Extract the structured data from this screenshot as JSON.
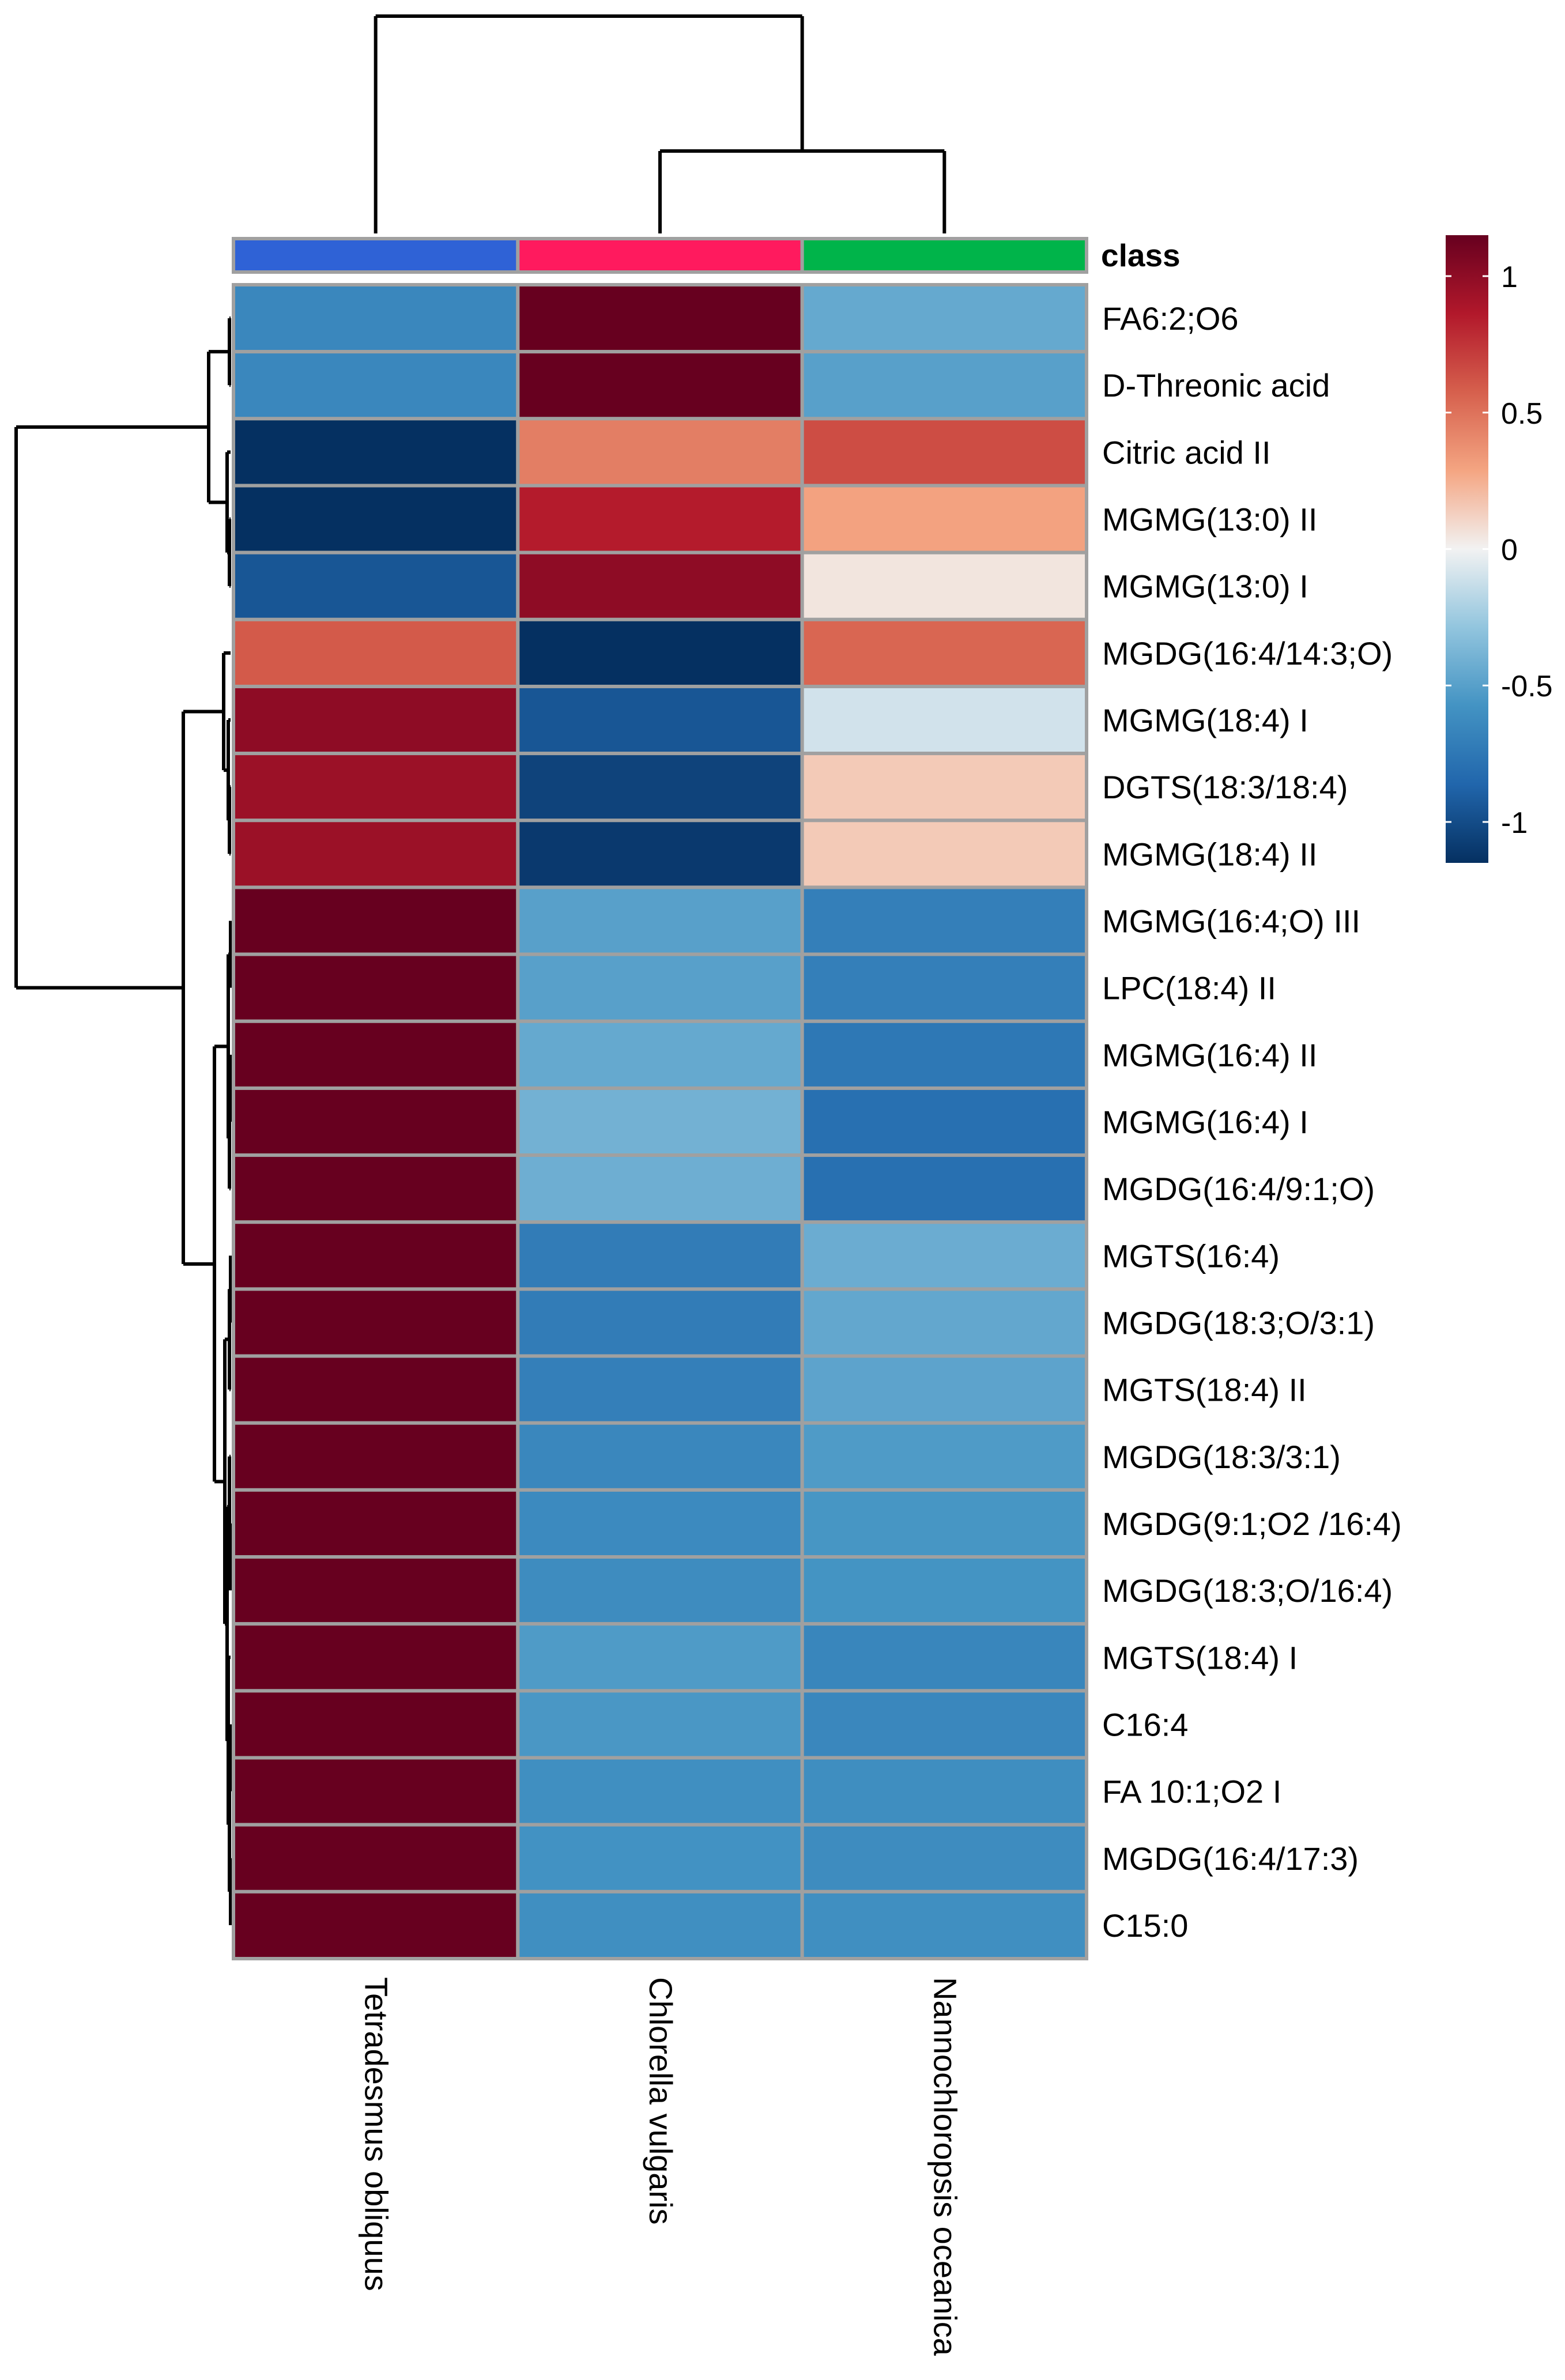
{
  "chart_data": {
    "type": "heatmap",
    "annotation_label": "class",
    "columns": [
      "Tetradesmus obliquus",
      "Chlorella vulgaris",
      "Nannochloropsis oceanica"
    ],
    "column_class_colors": [
      "#2F62D6",
      "#FF1A5E",
      "#00B44A"
    ],
    "rows": [
      "FA6:2;O6",
      "D-Threonic acid",
      "Citric acid II",
      "MGMG(13:0) II",
      "MGMG(13:0) I",
      "MGDG(16:4/14:3;O)",
      "MGMG(18:4) I",
      "DGTS(18:3/18:4)",
      "MGMG(18:4) II",
      "MGMG(16:4;O) III",
      "LPC(18:4) II",
      "MGMG(16:4) II",
      "MGMG(16:4) I",
      "MGDG(16:4/9:1;O)",
      "MGTS(16:4)",
      "MGDG(18:3;O/3:1)",
      "MGTS(18:4) II",
      "MGDG(18:3/3:1)",
      "MGDG(9:1;O2 /16:4)",
      "MGDG(18:3;O/16:4)",
      "MGTS(18:4) I",
      "C16:4",
      "FA 10:1;O2 I",
      "MGDG(16:4/17:3)",
      "C15:0"
    ],
    "values": [
      [
        -0.65,
        1.15,
        -0.45
      ],
      [
        -0.65,
        1.15,
        -0.5
      ],
      [
        -1.15,
        0.45,
        0.65
      ],
      [
        -1.15,
        0.85,
        0.3
      ],
      [
        -0.95,
        1.0,
        0.05
      ],
      [
        0.6,
        -1.15,
        0.55
      ],
      [
        1.0,
        -0.95,
        -0.1
      ],
      [
        0.95,
        -1.05,
        0.15
      ],
      [
        0.95,
        -1.1,
        0.15
      ],
      [
        1.15,
        -0.5,
        -0.7
      ],
      [
        1.15,
        -0.5,
        -0.7
      ],
      [
        1.15,
        -0.45,
        -0.75
      ],
      [
        1.15,
        -0.4,
        -0.8
      ],
      [
        1.15,
        -0.42,
        -0.8
      ],
      [
        1.15,
        -0.72,
        -0.43
      ],
      [
        1.15,
        -0.72,
        -0.46
      ],
      [
        1.15,
        -0.7,
        -0.48
      ],
      [
        1.15,
        -0.65,
        -0.53
      ],
      [
        1.15,
        -0.63,
        -0.56
      ],
      [
        1.15,
        -0.62,
        -0.57
      ],
      [
        1.15,
        -0.53,
        -0.66
      ],
      [
        1.15,
        -0.55,
        -0.65
      ],
      [
        1.15,
        -0.6,
        -0.61
      ],
      [
        1.15,
        -0.58,
        -0.62
      ],
      [
        1.15,
        -0.6,
        -0.6
      ]
    ],
    "color_scale": {
      "min": -1.15,
      "max": 1.15,
      "stops": [
        {
          "value": -1.15,
          "color": "#053061"
        },
        {
          "value": -0.862,
          "color": "#2166AC"
        },
        {
          "value": -0.575,
          "color": "#4393C3"
        },
        {
          "value": -0.287,
          "color": "#92C5DE"
        },
        {
          "value": 0,
          "color": "#F2F2F2"
        },
        {
          "value": 0.287,
          "color": "#F4A582"
        },
        {
          "value": 0.575,
          "color": "#D6604D"
        },
        {
          "value": 0.862,
          "color": "#B2182B"
        },
        {
          "value": 1.15,
          "color": "#67001F"
        }
      ]
    },
    "legend": {
      "ticks": [
        1,
        0.5,
        0,
        -0.5,
        -1
      ],
      "tick_labels": [
        "1",
        "0.5",
        "0",
        "-0.5",
        "-1"
      ],
      "placement": "right"
    },
    "column_dendrogram": "Tetradesmus obliquus vs (Chlorella vulgaris, Nannochloropsis oceanica)",
    "row_dendrogram": "rows 1-5 cluster vs rows 6-25 cluster"
  }
}
